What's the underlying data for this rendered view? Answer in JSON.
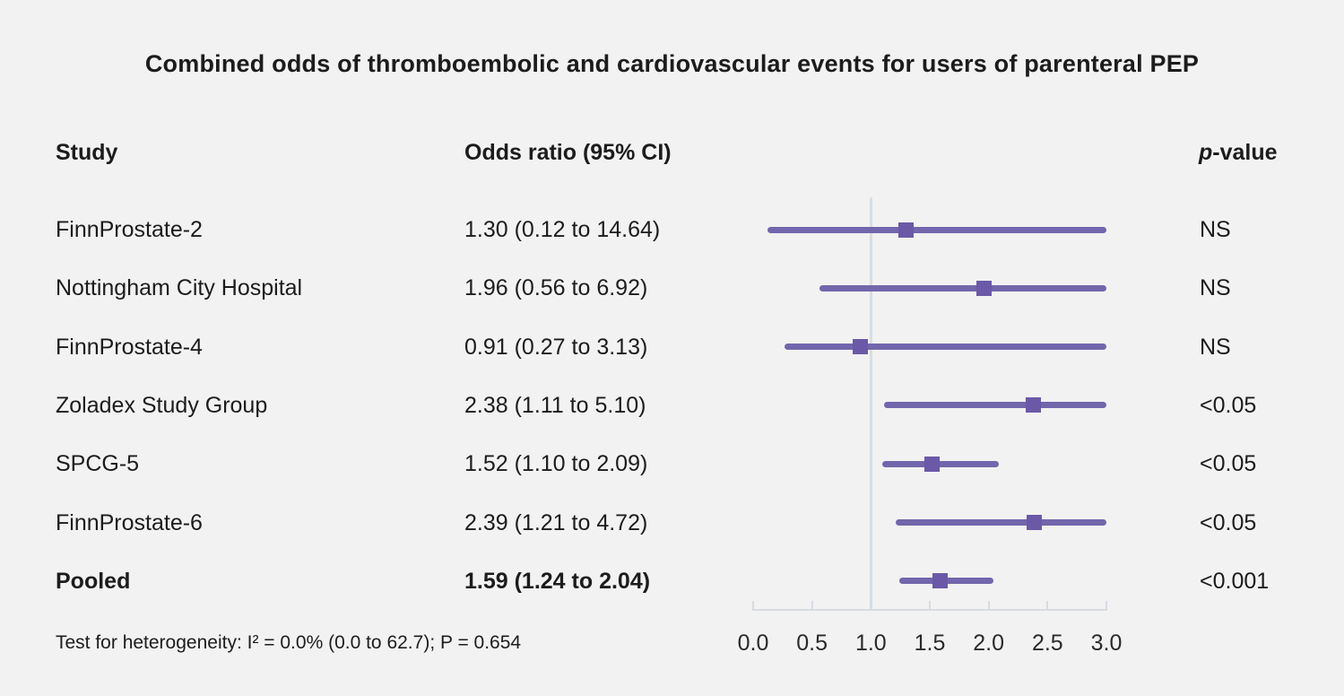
{
  "chart_data": {
    "type": "forest",
    "title": "Combined odds of thromboembolic and cardiovascular events for users of parenteral PEP",
    "columns": {
      "study": "Study",
      "odds_ratio": "Odds ratio (95% CI)",
      "p_italic": "p",
      "p_rest": "-value"
    },
    "x_axis": {
      "min": 0.0,
      "max": 3.0,
      "reference_line": 1.0,
      "ticks": [
        {
          "v": 0.0,
          "label": "0.0"
        },
        {
          "v": 0.5,
          "label": "0.5"
        },
        {
          "v": 1.0,
          "label": "1.0"
        },
        {
          "v": 1.5,
          "label": "1.5"
        },
        {
          "v": 2.0,
          "label": "2.0"
        },
        {
          "v": 2.5,
          "label": "2.5"
        },
        {
          "v": 3.0,
          "label": "3.0"
        }
      ]
    },
    "rows": [
      {
        "study": "FinnProstate-2",
        "or_text": "1.30 (0.12 to 14.64)",
        "estimate": 1.3,
        "lower": 0.12,
        "upper": 14.64,
        "p": "NS",
        "bold": false
      },
      {
        "study": "Nottingham City Hospital",
        "or_text": "1.96 (0.56 to 6.92)",
        "estimate": 1.96,
        "lower": 0.56,
        "upper": 6.92,
        "p": "NS",
        "bold": false
      },
      {
        "study": "FinnProstate-4",
        "or_text": "0.91 (0.27 to 3.13)",
        "estimate": 0.91,
        "lower": 0.27,
        "upper": 3.13,
        "p": "NS",
        "bold": false
      },
      {
        "study": "Zoladex Study Group",
        "or_text": "2.38 (1.11 to 5.10)",
        "estimate": 2.38,
        "lower": 1.11,
        "upper": 5.1,
        "p": "<0.05",
        "bold": false
      },
      {
        "study": "SPCG-5",
        "or_text": "1.52 (1.10 to 2.09)",
        "estimate": 1.52,
        "lower": 1.1,
        "upper": 2.09,
        "p": "<0.05",
        "bold": false
      },
      {
        "study": "FinnProstate-6",
        "or_text": "2.39 (1.21 to 4.72)",
        "estimate": 2.39,
        "lower": 1.21,
        "upper": 4.72,
        "p": "<0.05",
        "bold": false
      },
      {
        "study": "Pooled",
        "or_text": "1.59 (1.24 to 2.04)",
        "estimate": 1.59,
        "lower": 1.24,
        "upper": 2.04,
        "p": "<0.001",
        "bold": true
      }
    ],
    "heterogeneity": "Test for heterogeneity: I² = 0.0% (0.0 to 62.7); P = 0.654",
    "colors": {
      "background": "#f2f2f2",
      "ci_line": "#7266ac",
      "marker": "#6b59a7",
      "axis": "#d7dbe1",
      "reference_line": "#d9dde2",
      "text": "#1c1c1c"
    }
  }
}
